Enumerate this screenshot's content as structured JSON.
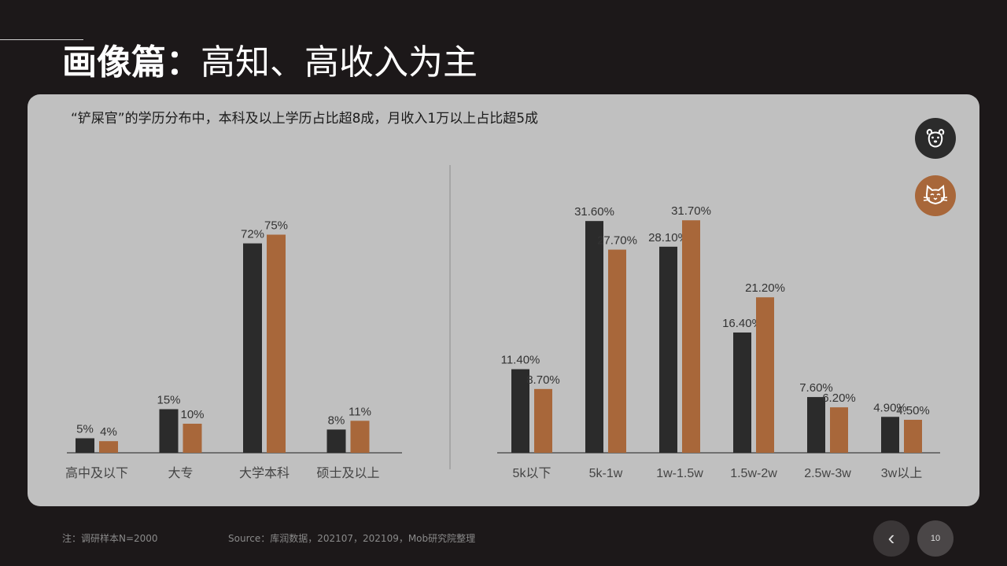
{
  "header": {
    "title_bold": "画像篇：",
    "title_rest": "高知、高收入为主"
  },
  "panel": {
    "subtitle": "“铲屎官”的学历分布中，本科及以上学历占比超8成，月收入1万以上占比超5成"
  },
  "legend": [
    {
      "icon": "dog-icon",
      "color": "#2b2b2b"
    },
    {
      "icon": "cat-icon",
      "color": "#a8673a"
    }
  ],
  "chart_data": [
    {
      "type": "bar",
      "title": "",
      "categories": [
        "高中及以下",
        "大专",
        "大学本科",
        "硕士及以上"
      ],
      "series": [
        {
          "values": [
            5,
            15,
            72,
            8
          ],
          "labels": [
            "5%",
            "15%",
            "72%",
            "8%"
          ],
          "color": "#2b2b2b"
        },
        {
          "values": [
            4,
            10,
            75,
            11
          ],
          "labels": [
            "4%",
            "10%",
            "75%",
            "11%"
          ],
          "color": "#a8673a"
        }
      ],
      "ylim": [
        0,
        80
      ],
      "grid": false,
      "legend": "right"
    },
    {
      "type": "bar",
      "title": "",
      "categories": [
        "5k以下",
        "5k-1w",
        "1w-1.5w",
        "1.5w-2w",
        "2.5w-3w",
        "3w以上"
      ],
      "series": [
        {
          "values": [
            11.4,
            31.6,
            28.1,
            16.4,
            7.6,
            4.9
          ],
          "labels": [
            "11.40%",
            "31.60%",
            "28.10%",
            "16.40%",
            "7.60%",
            "4.90%"
          ],
          "color": "#2b2b2b"
        },
        {
          "values": [
            8.7,
            27.7,
            31.7,
            21.2,
            6.2,
            4.5
          ],
          "labels": [
            "8.70%",
            "27.70%",
            "31.70%",
            "21.20%",
            "6.20%",
            "4.50%"
          ],
          "color": "#a8673a"
        }
      ],
      "ylim": [
        0,
        34
      ],
      "grid": false,
      "legend": "right"
    }
  ],
  "footer": {
    "note": "注：调研样本N=2000",
    "source": "Source：库润数据，202107，202109，Mob研究院整理"
  },
  "nav": {
    "prev_symbol": "‹",
    "page_number": "10"
  }
}
